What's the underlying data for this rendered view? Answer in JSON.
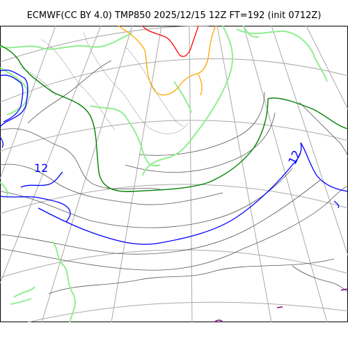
{
  "header": {
    "title": "ECMWF(CC BY 4.0) TMP850 2025/12/15 12Z FT=192 (init 0712Z)"
  },
  "map": {
    "labels": [
      {
        "text": "12"
      },
      {
        "text": "12"
      }
    ],
    "colors": {
      "coastline": "#4d4d4d",
      "graticule": "#a9a9a9",
      "isotherm_minus_12": "#0000ff",
      "isotherm_0": "#008000",
      "isotherm_plus_6": "#ffa500",
      "isotherm_plus_12": "#ff0000",
      "isotherm_plus_18": "#800080",
      "tmp_band": "#90ee90"
    }
  }
}
